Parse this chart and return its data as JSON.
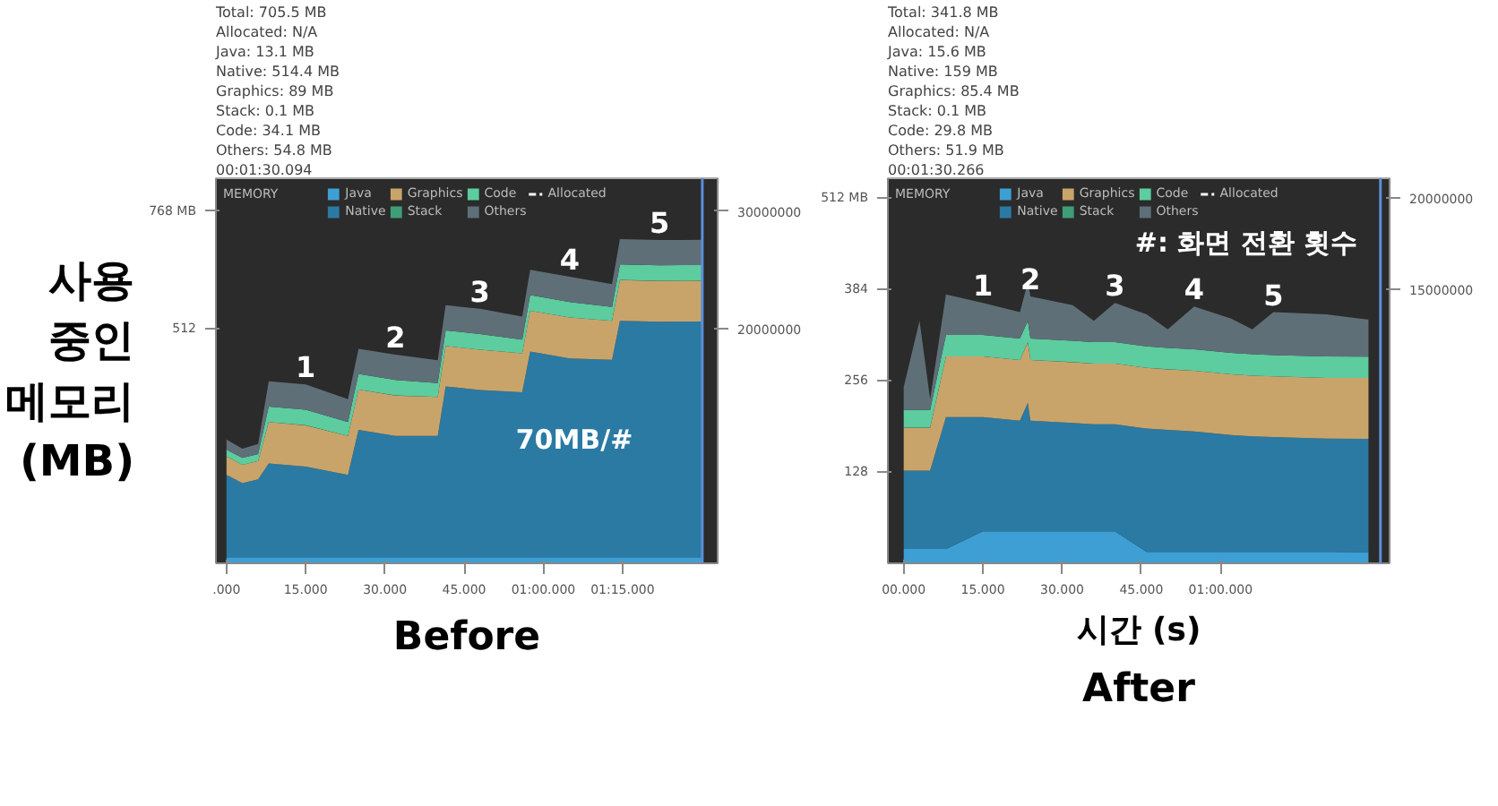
{
  "chart_data": [
    {
      "type": "area",
      "title": "Before",
      "subtitle": "MEMORY",
      "ylabel": "사용 중인 메모리 (MB)",
      "stacked": true,
      "legend": "top",
      "x": [
        0,
        3,
        6,
        8,
        15,
        23,
        25,
        32,
        40,
        41.5,
        48,
        56,
        57.5,
        65,
        73,
        74.5,
        82,
        90
      ],
      "series": [
        {
          "name": "Java",
          "color": "#3d9fd3",
          "values": [
            13,
            13,
            13,
            13,
            13,
            13,
            13,
            13,
            13,
            13,
            13,
            13,
            13,
            13,
            13,
            13,
            13,
            13.1
          ]
        },
        {
          "name": "Native",
          "color": "#2a7aa4",
          "values": [
            180,
            162,
            170,
            205,
            198,
            180,
            278,
            265,
            265,
            373,
            365,
            360,
            449,
            434,
            431,
            516,
            514,
            514.4
          ]
        },
        {
          "name": "Graphics",
          "color": "#c9a46a",
          "values": [
            40,
            40,
            40,
            90,
            90,
            85,
            88,
            88,
            85,
            88,
            88,
            85,
            89,
            89,
            85,
            89,
            89,
            89
          ]
        },
        {
          "name": "Stack",
          "color": "#3e9e77",
          "values": [
            0.1,
            0.1,
            0.1,
            0.1,
            0.1,
            0.1,
            0.1,
            0.1,
            0.1,
            0.1,
            0.1,
            0.1,
            0.1,
            0.1,
            0.1,
            0.1,
            0.1,
            0.1
          ]
        },
        {
          "name": "Code",
          "color": "#5dcc9f",
          "values": [
            15,
            15,
            15,
            34,
            34,
            30,
            34,
            34,
            30,
            34,
            34,
            30,
            34,
            34,
            30,
            34,
            34,
            34.1
          ]
        },
        {
          "name": "Others",
          "color": "#5f6f78",
          "values": [
            22,
            20,
            22,
            55,
            55,
            50,
            55,
            55,
            50,
            55,
            55,
            50,
            55,
            55,
            50,
            55,
            55,
            54.8
          ]
        },
        {
          "name": "Allocated",
          "type": "line",
          "line_style": "dashed",
          "color": "#ffffff",
          "values": [
            null,
            null,
            null,
            null,
            null,
            null,
            null,
            null,
            null,
            null,
            null,
            null,
            null,
            null,
            null,
            null,
            null,
            null
          ]
        }
      ],
      "xlim": [
        -2,
        93
      ],
      "ylim": [
        0,
        840
      ],
      "y2lim": [
        0,
        32812500
      ],
      "xticks": [
        {
          "value": 0,
          "label": ".000"
        },
        {
          "value": 15,
          "label": "15.000"
        },
        {
          "value": 30,
          "label": "30.000"
        },
        {
          "value": 45,
          "label": "45.000"
        },
        {
          "value": 60,
          "label": "01:00.000"
        },
        {
          "value": 75,
          "label": "01:15.000"
        }
      ],
      "yticks": [
        {
          "value": 768,
          "label": "768 MB"
        },
        512
      ],
      "y2ticks": [
        {
          "value": 30000000,
          "label": "30000000"
        },
        {
          "value": 20000000,
          "label": "20000000"
        }
      ],
      "ref_lines": [
        {
          "axis": "x",
          "value": 90.094,
          "color": "#5b8fd9"
        }
      ],
      "annotations": [
        {
          "text": "1",
          "x": 15,
          "y": 390.1
        },
        {
          "text": "2",
          "x": 32,
          "y": 455.1
        },
        {
          "text": "3",
          "x": 48,
          "y": 555.1
        },
        {
          "text": "4",
          "x": 65,
          "y": 625.1
        },
        {
          "text": "5",
          "x": 82,
          "y": 705.1
        },
        "70MB/#",
        "00:01:30.094",
        "Others: 54.8 MB",
        "Code: 34.1 MB",
        "Stack: 0.1 MB",
        "Graphics: 89 MB",
        "Native: 514.4 MB",
        "Java: 13.1 MB",
        "Allocated: N/A",
        "Total: 705.5 MB"
      ]
    },
    {
      "type": "area",
      "title": "After",
      "subtitle": "MEMORY",
      "xlabel": "시간 (s)",
      "stacked": true,
      "legend": "top",
      "x": [
        0,
        3,
        5,
        8,
        15,
        22,
        23.5,
        24,
        32,
        36,
        40,
        46,
        50,
        55,
        62,
        66,
        70,
        80,
        88
      ],
      "series": [
        {
          "name": "Java",
          "color": "#3d9fd3",
          "values": [
            20,
            20,
            20,
            20,
            45,
            45,
            45,
            45,
            45,
            45,
            45,
            16,
            16,
            16,
            16,
            16,
            16,
            16,
            15.6
          ]
        },
        {
          "name": "Native",
          "color": "#2a7aa4",
          "values": [
            110,
            110,
            110,
            185,
            160,
            155,
            180,
            155,
            152,
            150,
            150,
            173,
            171,
            169,
            164,
            162,
            161,
            159,
            159
          ]
        },
        {
          "name": "Graphics",
          "color": "#c9a46a",
          "values": [
            60,
            60,
            60,
            85,
            85,
            85,
            85,
            85,
            85,
            85,
            85,
            85,
            85,
            85,
            85,
            85,
            85,
            85,
            85.4
          ]
        },
        {
          "name": "Stack",
          "color": "#3e9e77",
          "values": [
            0.1,
            0.1,
            0.1,
            0.1,
            0.1,
            0.1,
            0.1,
            0.1,
            0.1,
            0.1,
            0.1,
            0.1,
            0.1,
            0.1,
            0.1,
            0.1,
            0.1,
            0.1,
            0.1
          ]
        },
        {
          "name": "Code",
          "color": "#5dcc9f",
          "values": [
            25,
            25,
            25,
            30,
            30,
            30,
            30,
            30,
            30,
            30,
            30,
            30,
            30,
            30,
            30,
            30,
            30,
            30,
            29.8
          ]
        },
        {
          "name": "Others",
          "color": "#5f6f78",
          "values": [
            32,
            125,
            15,
            57,
            45,
            37,
            54,
            59,
            50,
            30,
            55,
            45,
            26,
            60,
            48,
            35,
            60,
            59,
            51.9
          ]
        },
        {
          "name": "Allocated",
          "type": "line",
          "line_style": "dashed",
          "color": "#ffffff",
          "values": [
            null,
            null,
            null,
            null,
            null,
            null,
            null,
            null,
            null,
            null,
            null,
            null,
            null,
            null,
            null,
            null,
            null,
            null,
            null
          ]
        }
      ],
      "xlim": [
        -3,
        92
      ],
      "ylim": [
        0,
        540
      ],
      "y2lim": [
        0,
        21093750
      ],
      "xticks": [
        {
          "value": 0,
          "label": "00.000"
        },
        {
          "value": 15,
          "label": "15.000"
        },
        {
          "value": 30,
          "label": "30.000"
        },
        {
          "value": 45,
          "label": "45.000"
        },
        {
          "value": 60,
          "label": "01:00.000"
        }
      ],
      "yticks": [
        {
          "value": 512,
          "label": "512 MB"
        },
        384,
        256,
        128
      ],
      "y2ticks": [
        {
          "value": 20000000,
          "label": "20000000"
        },
        {
          "value": 15000000,
          "label": "15000000"
        }
      ],
      "ref_lines": [
        {
          "axis": "x",
          "value": 90.266,
          "color": "#5b8fd9"
        }
      ],
      "annotations": [
        {
          "text": "1",
          "x": 15,
          "y": 365.1
        },
        {
          "text": "2",
          "x": 24,
          "y": 374.1
        },
        {
          "text": "3",
          "x": 40,
          "y": 365.1
        },
        {
          "text": "4",
          "x": 55,
          "y": 360.1
        },
        {
          "text": "5",
          "x": 70,
          "y": 352.1
        },
        "#: 화면 전환 횟수",
        "00:01:30.266",
        "Others: 51.9 MB",
        "Code: 29.8 MB",
        "Stack: 0.1 MB",
        "Graphics: 85.4 MB",
        "Native: 159 MB",
        "Java: 15.6 MB",
        "Allocated: N/A",
        "Total: 341.8 MB"
      ]
    }
  ]
}
